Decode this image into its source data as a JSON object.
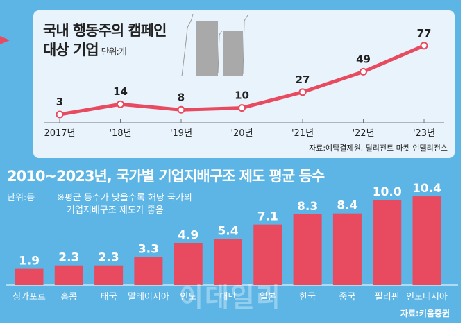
{
  "watermark": "이데일리",
  "colors": {
    "background": "#5cb5e5",
    "panel": "#e9f3fb",
    "accent": "#e84a5f"
  },
  "chart_data": [
    {
      "type": "line",
      "title": "국내 행동주의 캠페인 대상 기업",
      "unit": "단위:개",
      "categories": [
        "2017년",
        "'18년",
        "'19년",
        "'20년",
        "'21년",
        "'22년",
        "'23년"
      ],
      "values": [
        3,
        14,
        8,
        10,
        27,
        49,
        77
      ],
      "source": "자료:예탁결제원, 딜리전트 마켓 인텔리전스",
      "decoration": "building-illustration"
    },
    {
      "type": "bar",
      "title": "2010~2023년, 국가별 기업지배구조 제도 평균 등수",
      "unit": "단위:등",
      "note_line1": "※평균 등수가 낮을수록 해당 국가의",
      "note_line2": "기업지배구조 제도가 좋음",
      "categories": [
        "싱가포르",
        "홍콩",
        "태국",
        "말레이시아",
        "인도",
        "대만",
        "일본",
        "한국",
        "중국",
        "필리핀",
        "인도네시아"
      ],
      "values": [
        1.9,
        2.3,
        2.3,
        3.3,
        4.9,
        5.4,
        7.1,
        8.3,
        8.4,
        10.0,
        10.4
      ],
      "value_labels": [
        "1.9",
        "2.3",
        "2.3",
        "3.3",
        "4.9",
        "5.4",
        "7.1",
        "8.3",
        "8.4",
        "10.0",
        "10.4"
      ],
      "source": "자료:키움증권"
    }
  ]
}
